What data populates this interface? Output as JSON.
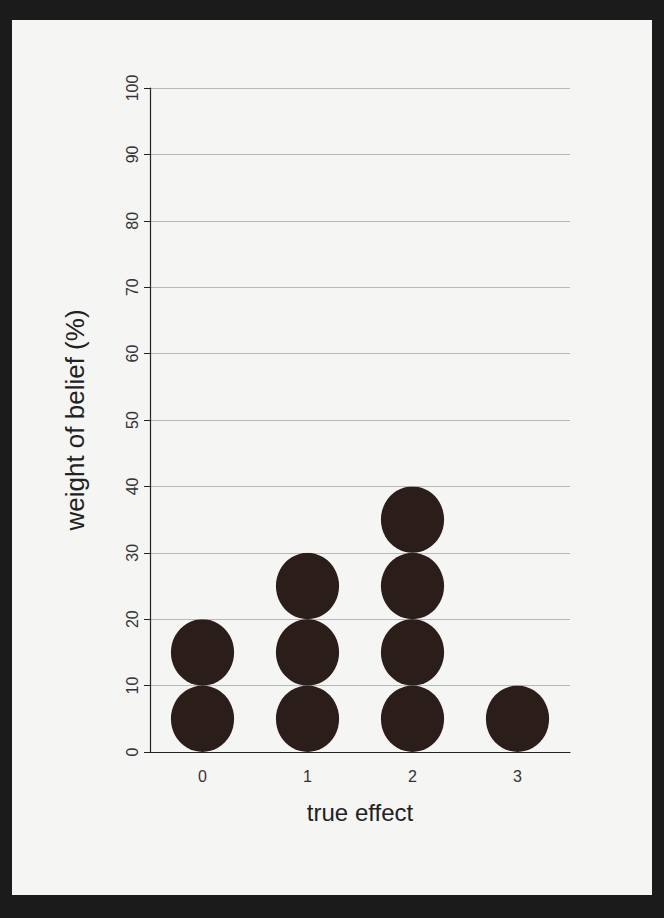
{
  "chart_data": {
    "type": "bar",
    "marker": "circle",
    "x_label": "true effect",
    "y_label": "weight of belief (%)",
    "categories": [
      "0",
      "1",
      "2",
      "3"
    ],
    "values": [
      20,
      30,
      40,
      10
    ],
    "color": "#2b1d1a",
    "ylim": [
      0,
      100
    ],
    "yticks": [
      0,
      10,
      20,
      30,
      40,
      50,
      60,
      70,
      80,
      90,
      100
    ],
    "grid": true
  }
}
